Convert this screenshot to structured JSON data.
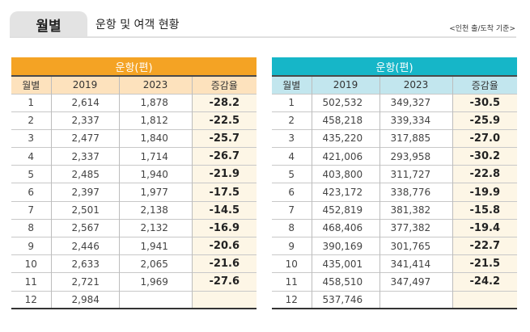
{
  "header": {
    "tab_label": "월별",
    "subtitle": "운항 및 여객 현황",
    "note": "<인천 출/도착 기준>"
  },
  "colors": {
    "left_band": "#f4a324",
    "left_header": "#fde2bd",
    "right_band": "#16b6c8",
    "right_header": "#c2e6ee",
    "rate_cell": "#fdf6e6"
  },
  "tables": [
    {
      "title": "운항(편)",
      "columns": [
        "월별",
        "2019",
        "2023",
        "증감율"
      ],
      "rows": [
        [
          "1",
          "2,614",
          "1,878",
          "-28.2"
        ],
        [
          "2",
          "2,337",
          "1,812",
          "-22.5"
        ],
        [
          "3",
          "2,477",
          "1,840",
          "-25.7"
        ],
        [
          "4",
          "2,337",
          "1,714",
          "-26.7"
        ],
        [
          "5",
          "2,485",
          "1,940",
          "-21.9"
        ],
        [
          "6",
          "2,397",
          "1,977",
          "-17.5"
        ],
        [
          "7",
          "2,501",
          "2,138",
          "-14.5"
        ],
        [
          "8",
          "2,567",
          "2,132",
          "-16.9"
        ],
        [
          "9",
          "2,446",
          "1,941",
          "-20.6"
        ],
        [
          "10",
          "2,633",
          "2,065",
          "-21.6"
        ],
        [
          "11",
          "2,721",
          "1,969",
          "-27.6"
        ],
        [
          "12",
          "2,984",
          "",
          ""
        ]
      ]
    },
    {
      "title": "운항(편)",
      "columns": [
        "월별",
        "2019",
        "2023",
        "증감율"
      ],
      "rows": [
        [
          "1",
          "502,532",
          "349,327",
          "-30.5"
        ],
        [
          "2",
          "458,218",
          "339,334",
          "-25.9"
        ],
        [
          "3",
          "435,220",
          "317,885",
          "-27.0"
        ],
        [
          "4",
          "421,006",
          "293,958",
          "-30.2"
        ],
        [
          "5",
          "403,800",
          "311,727",
          "-22.8"
        ],
        [
          "6",
          "423,172",
          "338,776",
          "-19.9"
        ],
        [
          "7",
          "452,819",
          "381,382",
          "-15.8"
        ],
        [
          "8",
          "468,406",
          "377,382",
          "-19.4"
        ],
        [
          "9",
          "390,169",
          "301,765",
          "-22.7"
        ],
        [
          "10",
          "435,001",
          "341,414",
          "-21.5"
        ],
        [
          "11",
          "458,510",
          "347,497",
          "-24.2"
        ],
        [
          "12",
          "537,746",
          "",
          ""
        ]
      ]
    }
  ]
}
